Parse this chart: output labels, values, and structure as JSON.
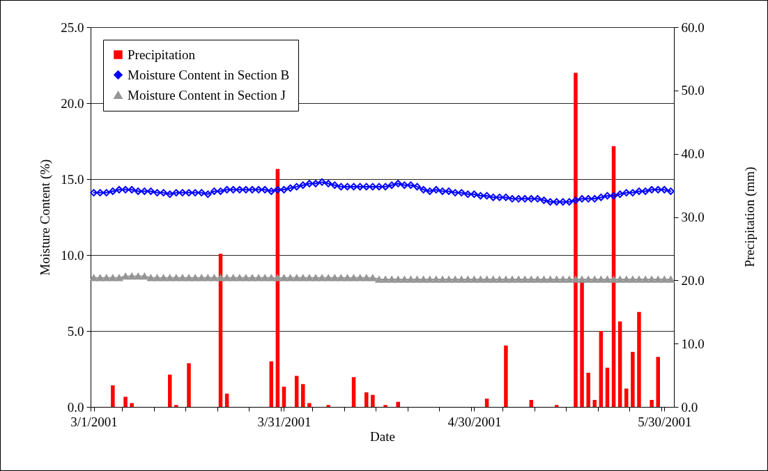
{
  "chart_data": {
    "type": "line",
    "xlabel": "Date",
    "ylabel": "Moisture Content (%)",
    "y2label": "Precipitation (mm)",
    "x": [
      "2001-03-01",
      "2001-03-02",
      "2001-03-03",
      "2001-03-04",
      "2001-03-05",
      "2001-03-06",
      "2001-03-07",
      "2001-03-08",
      "2001-03-09",
      "2001-03-10",
      "2001-03-11",
      "2001-03-12",
      "2001-03-13",
      "2001-03-14",
      "2001-03-15",
      "2001-03-16",
      "2001-03-17",
      "2001-03-18",
      "2001-03-19",
      "2001-03-20",
      "2001-03-21",
      "2001-03-22",
      "2001-03-23",
      "2001-03-24",
      "2001-03-25",
      "2001-03-26",
      "2001-03-27",
      "2001-03-28",
      "2001-03-29",
      "2001-03-30",
      "2001-03-31",
      "2001-04-01",
      "2001-04-02",
      "2001-04-03",
      "2001-04-04",
      "2001-04-05",
      "2001-04-06",
      "2001-04-07",
      "2001-04-08",
      "2001-04-09",
      "2001-04-10",
      "2001-04-11",
      "2001-04-12",
      "2001-04-13",
      "2001-04-14",
      "2001-04-15",
      "2001-04-16",
      "2001-04-17",
      "2001-04-18",
      "2001-04-19",
      "2001-04-20",
      "2001-04-21",
      "2001-04-22",
      "2001-04-23",
      "2001-04-24",
      "2001-04-25",
      "2001-04-26",
      "2001-04-27",
      "2001-04-28",
      "2001-04-29",
      "2001-04-30",
      "2001-05-01",
      "2001-05-02",
      "2001-05-03",
      "2001-05-04",
      "2001-05-05",
      "2001-05-06",
      "2001-05-07",
      "2001-05-08",
      "2001-05-09",
      "2001-05-10",
      "2001-05-11",
      "2001-05-12",
      "2001-05-13",
      "2001-05-14",
      "2001-05-15",
      "2001-05-16",
      "2001-05-17",
      "2001-05-18",
      "2001-05-19",
      "2001-05-20",
      "2001-05-21",
      "2001-05-22",
      "2001-05-23",
      "2001-05-24",
      "2001-05-25",
      "2001-05-26",
      "2001-05-27",
      "2001-05-28",
      "2001-05-29",
      "2001-05-30",
      "2001-05-31"
    ],
    "series": [
      {
        "name": "Precipitation",
        "type": "bar",
        "axis": "y2",
        "color": "#ff0000",
        "x": [
          "2001-03-04",
          "2001-03-06",
          "2001-03-07",
          "2001-03-13",
          "2001-03-14",
          "2001-03-16",
          "2001-03-21",
          "2001-03-22",
          "2001-03-29",
          "2001-03-30",
          "2001-03-31",
          "2001-04-02",
          "2001-04-03",
          "2001-04-04",
          "2001-04-07",
          "2001-04-11",
          "2001-04-13",
          "2001-04-14",
          "2001-04-16",
          "2001-04-18",
          "2001-05-02",
          "2001-05-05",
          "2001-05-09",
          "2001-05-13",
          "2001-05-16",
          "2001-05-17",
          "2001-05-18",
          "2001-05-19",
          "2001-05-20",
          "2001-05-21",
          "2001-05-22",
          "2001-05-23",
          "2001-05-24",
          "2001-05-25",
          "2001-05-26",
          "2001-05-28",
          "2001-05-29"
        ],
        "values": [
          3.4,
          1.6,
          0.6,
          5.1,
          0.3,
          6.9,
          24.2,
          2.1,
          7.2,
          37.6,
          3.2,
          4.9,
          3.6,
          0.6,
          0.3,
          4.7,
          2.3,
          1.9,
          0.3,
          0.8,
          1.3,
          9.7,
          1.1,
          0.3,
          52.8,
          19.8,
          5.4,
          1.1,
          12.0,
          6.2,
          41.2,
          13.5,
          2.9,
          8.7,
          15.0,
          1.1,
          7.9
        ]
      },
      {
        "name": "Moisture Content in Section B",
        "color": "#0000ff",
        "marker": "diamond",
        "values": [
          14.1,
          14.1,
          14.1,
          14.2,
          14.3,
          14.3,
          14.3,
          14.2,
          14.2,
          14.2,
          14.1,
          14.1,
          14.0,
          14.1,
          14.1,
          14.1,
          14.1,
          14.1,
          14.0,
          14.2,
          14.2,
          14.3,
          14.3,
          14.3,
          14.3,
          14.3,
          14.3,
          14.3,
          14.2,
          14.3,
          14.3,
          14.4,
          14.5,
          14.6,
          14.7,
          14.7,
          14.8,
          14.7,
          14.6,
          14.5,
          14.5,
          14.5,
          14.5,
          14.5,
          14.5,
          14.5,
          14.5,
          14.6,
          14.7,
          14.6,
          14.6,
          14.5,
          14.3,
          14.2,
          14.3,
          14.2,
          14.2,
          14.1,
          14.1,
          14.0,
          14.0,
          13.9,
          13.9,
          13.8,
          13.8,
          13.8,
          13.7,
          13.7,
          13.7,
          13.7,
          13.7,
          13.6,
          13.5,
          13.5,
          13.5,
          13.5,
          13.6,
          13.7,
          13.7,
          13.7,
          13.8,
          13.9,
          13.9,
          14.0,
          14.1,
          14.1,
          14.2,
          14.2,
          14.3,
          14.3,
          14.3,
          14.2
        ]
      },
      {
        "name": "Moisture Content in Section J",
        "color": "#969696",
        "marker": "triangle",
        "values": [
          8.5,
          8.5,
          8.5,
          8.5,
          8.5,
          8.6,
          8.6,
          8.6,
          8.6,
          8.5,
          8.5,
          8.5,
          8.5,
          8.5,
          8.5,
          8.5,
          8.5,
          8.5,
          8.5,
          8.5,
          8.5,
          8.5,
          8.5,
          8.5,
          8.5,
          8.5,
          8.5,
          8.5,
          8.5,
          8.5,
          8.5,
          8.5,
          8.5,
          8.5,
          8.5,
          8.5,
          8.5,
          8.5,
          8.5,
          8.5,
          8.5,
          8.5,
          8.5,
          8.5,
          8.5,
          8.4,
          8.4,
          8.4,
          8.4,
          8.4,
          8.4,
          8.4,
          8.4,
          8.4,
          8.4,
          8.4,
          8.4,
          8.4,
          8.4,
          8.4,
          8.4,
          8.4,
          8.4,
          8.4,
          8.4,
          8.4,
          8.4,
          8.4,
          8.4,
          8.4,
          8.4,
          8.4,
          8.4,
          8.4,
          8.4,
          8.4,
          8.4,
          8.4,
          8.4,
          8.4,
          8.4,
          8.4,
          8.4,
          8.4,
          8.4,
          8.4,
          8.4,
          8.4,
          8.4,
          8.4,
          8.4,
          8.4
        ]
      }
    ],
    "xlim": [
      "2001-02-28T12:00",
      "2001-05-31T12:00"
    ],
    "xticks": [
      {
        "value": "2001-03-01",
        "label": "3/1/2001"
      },
      {
        "value": "2001-03-31",
        "label": "3/31/2001"
      },
      {
        "value": "2001-04-30",
        "label": "4/30/2001"
      },
      {
        "value": "2001-05-30",
        "label": "5/30/2001"
      },
      {
        "value": "2001-02-28T12:00",
        "label": null
      },
      {
        "value": "2001-03-05T12:00",
        "label": null
      },
      {
        "value": "2001-03-10T12:00",
        "label": null
      },
      {
        "value": "2001-03-15T12:00",
        "label": null
      },
      {
        "value": "2001-03-20T12:00",
        "label": null
      },
      {
        "value": "2001-03-25T12:00",
        "label": null
      },
      {
        "value": "2001-03-30T12:00",
        "label": null
      },
      {
        "value": "2001-04-04T12:00",
        "label": null
      },
      {
        "value": "2001-04-09T12:00",
        "label": null
      },
      {
        "value": "2001-04-14T12:00",
        "label": null
      },
      {
        "value": "2001-04-19T12:00",
        "label": null
      },
      {
        "value": "2001-04-24T12:00",
        "label": null
      },
      {
        "value": "2001-04-29T12:00",
        "label": null
      },
      {
        "value": "2001-05-04T12:00",
        "label": null
      },
      {
        "value": "2001-05-09T12:00",
        "label": null
      },
      {
        "value": "2001-05-14T12:00",
        "label": null
      },
      {
        "value": "2001-05-19T12:00",
        "label": null
      },
      {
        "value": "2001-05-24T12:00",
        "label": null
      },
      {
        "value": "2001-05-29T12:00",
        "label": null
      }
    ],
    "ylim": [
      0,
      25
    ],
    "yticks": [
      {
        "value": 0,
        "label": "0.0"
      },
      {
        "value": 5,
        "label": "5.0"
      },
      {
        "value": 10,
        "label": "10.0"
      },
      {
        "value": 15,
        "label": "15.0"
      },
      {
        "value": 20,
        "label": "20.0"
      },
      {
        "value": 25,
        "label": "25.0"
      }
    ],
    "y2lim": [
      0,
      60
    ],
    "y2ticks": [
      {
        "value": 0,
        "label": "0.0"
      },
      {
        "value": 10,
        "label": "10.0"
      },
      {
        "value": 20,
        "label": "20.0"
      },
      {
        "value": 30,
        "label": "30.0"
      },
      {
        "value": 40,
        "label": "40.0"
      },
      {
        "value": 50,
        "label": "50.0"
      },
      {
        "value": 60,
        "label": "60.0"
      }
    ],
    "grid": "y",
    "legend": "top left",
    "line_style": "solid"
  }
}
